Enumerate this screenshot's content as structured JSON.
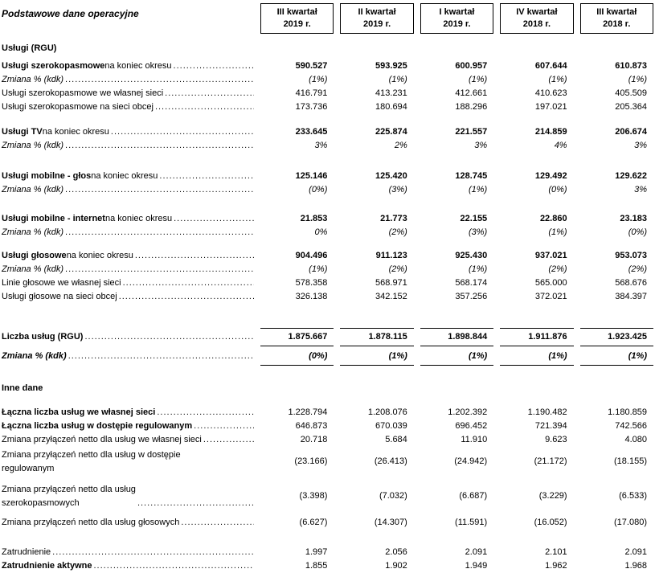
{
  "title": "Podstawowe dane operacyjne",
  "columns": [
    {
      "l1": "III kwartał",
      "l2": "2019 r."
    },
    {
      "l1": "II kwartał",
      "l2": "2019 r."
    },
    {
      "l1": "I kwartał",
      "l2": "2019 r."
    },
    {
      "l1": "IV kwartał",
      "l2": "2018 r."
    },
    {
      "l1": "III kwartał",
      "l2": "2018 r."
    }
  ],
  "rows": [
    {
      "type": "section",
      "label": "Usługi (RGU)",
      "gap": 10
    },
    {
      "strong": "Usługi szerokopasmowe",
      "rest": " na koniec okresu",
      "leader": true,
      "vstyle": "bold",
      "values": [
        "590.527",
        "593.925",
        "600.957",
        "607.644",
        "610.873"
      ],
      "gap": 5
    },
    {
      "rest": "Zmiana % (kdk)",
      "lstyle": "italic",
      "leader": true,
      "vstyle": "italic",
      "values": [
        "(1%)",
        "(1%)",
        "(1%)",
        "(1%)",
        "(1%)"
      ]
    },
    {
      "rest": "Usługi szerokopasmowe we własnej sieci",
      "leader": true,
      "values": [
        "416.791",
        "413.231",
        "412.661",
        "410.623",
        "405.509"
      ]
    },
    {
      "rest": "Usługi szerokopasmowe na sieci obcej",
      "leader": true,
      "values": [
        "173.736",
        "180.694",
        "188.296",
        "197.021",
        "205.364"
      ]
    },
    {
      "strong": "Usługi TV",
      "rest": " na koniec okresu",
      "leader": true,
      "vstyle": "bold",
      "values": [
        "233.645",
        "225.874",
        "221.557",
        "214.859",
        "206.674"
      ],
      "gap": 14
    },
    {
      "rest": "Zmiana % (kdk)",
      "lstyle": "italic",
      "leader": true,
      "vstyle": "italic",
      "values": [
        "3%",
        "2%",
        "3%",
        "4%",
        "3%"
      ]
    },
    {
      "strong": "Usługi mobilne - głos",
      "rest": " na koniec okresu",
      "leader": true,
      "vstyle": "bold",
      "values": [
        "125.146",
        "125.420",
        "128.745",
        "129.492",
        "129.622"
      ],
      "gap": 21
    },
    {
      "rest": "Zmiana % (kdk)",
      "lstyle": "italic",
      "leader": true,
      "vstyle": "italic",
      "values": [
        "(0%)",
        "(3%)",
        "(1%)",
        "(0%)",
        "3%"
      ]
    },
    {
      "strong": "Usługi mobilne - internet",
      "rest": " na koniec okresu",
      "leader": true,
      "vstyle": "bold",
      "values": [
        "21.853",
        "21.773",
        "22.155",
        "22.860",
        "23.183"
      ],
      "gap": 19
    },
    {
      "rest": "Zmiana % (kdk)",
      "lstyle": "italic",
      "leader": true,
      "vstyle": "italic",
      "values": [
        "0%",
        "(2%)",
        "(3%)",
        "(1%)",
        "(0%)"
      ]
    },
    {
      "strong": "Usługi głosowe",
      "rest": " na koniec okresu",
      "leader": true,
      "vstyle": "bold",
      "values": [
        "904.496",
        "911.123",
        "925.430",
        "937.021",
        "953.073"
      ],
      "gap": 12
    },
    {
      "rest": "Zmiana % (kdk)",
      "lstyle": "italic",
      "leader": true,
      "vstyle": "italic",
      "values": [
        "(1%)",
        "(2%)",
        "(1%)",
        "(2%)",
        "(2%)"
      ]
    },
    {
      "rest": "Linie głosowe we własnej sieci",
      "leader": true,
      "values": [
        "578.358",
        "568.971",
        "568.174",
        "565.000",
        "568.676"
      ]
    },
    {
      "rest": "Usługi głosowe na sieci obcej",
      "leader": true,
      "values": [
        "326.138",
        "342.152",
        "357.256",
        "372.021",
        "384.397"
      ]
    },
    {
      "strong": "Liczba usług (RGU)",
      "leader": true,
      "vstyle": "bold",
      "rule": "box",
      "values": [
        "1.875.667",
        "1.878.115",
        "1.898.844",
        "1.911.876",
        "1.923.425"
      ],
      "gap": 30
    },
    {
      "rest": "Zmiana % (kdk)",
      "lstyle": "bolditalic",
      "leader": true,
      "vstyle": "bolditalic",
      "rule": "bottom",
      "values": [
        "(0%)",
        "(1%)",
        "(1%)",
        "(1%)",
        "(1%)"
      ],
      "gap": 4
    },
    {
      "type": "section",
      "label": "Inne dane",
      "gap": 20
    },
    {
      "strong": "Łączna liczba usług we własnej sieci",
      "leader": true,
      "values": [
        "1.228.794",
        "1.208.076",
        "1.202.392",
        "1.190.482",
        "1.180.859"
      ],
      "gap": 13
    },
    {
      "strong": "Łączna liczba usług w dostępie regulowanym",
      "leader": true,
      "values": [
        "646.873",
        "670.039",
        "696.452",
        "721.394",
        "742.566"
      ]
    },
    {
      "rest": "Zmiana przyłączeń netto dla usług we własnej sieci",
      "leader": true,
      "values": [
        "20.718",
        "5.684",
        "11.910",
        "9.623",
        "4.080"
      ]
    },
    {
      "rest": "Zmiana przyłączeń netto dla usług w dostępie\nregulowanym",
      "leader": false,
      "multiline": true,
      "values": [
        "(23.166)",
        "(26.413)",
        "(24.942)",
        "(21.172)",
        "(18.155)"
      ],
      "gap": 2
    },
    {
      "rest": "Zmiana przyłączeń netto dla usług\nszerokopasmowych",
      "leader": true,
      "multiline": true,
      "values": [
        "(3.398)",
        "(7.032)",
        "(6.687)",
        "(3.229)",
        "(6.533)"
      ],
      "gap": 9
    },
    {
      "rest": "Zmiana przyłączeń netto dla usług głosowych",
      "leader": true,
      "values": [
        "(6.627)",
        "(14.307)",
        "(11.591)",
        "(16.052)",
        "(17.080)"
      ],
      "gap": 7
    },
    {
      "rest": "Zatrudnienie",
      "leader": true,
      "values": [
        "1.997",
        "2.056",
        "2.091",
        "2.101",
        "2.091"
      ],
      "gap": 20
    },
    {
      "strong": "Zatrudnienie aktywne",
      "leader": true,
      "values": [
        "1.855",
        "1.902",
        "1.949",
        "1.962",
        "1.968"
      ]
    }
  ]
}
